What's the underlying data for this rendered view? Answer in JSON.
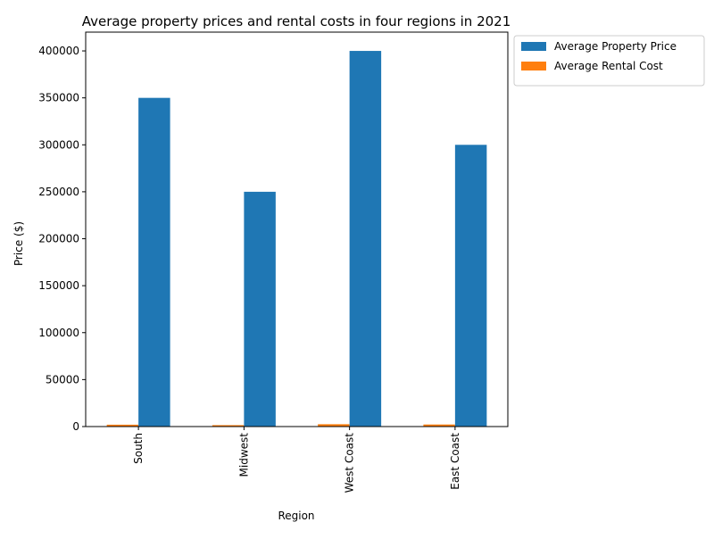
{
  "chart_data": {
    "type": "bar",
    "title": "Average property prices and rental costs in four regions in 2021",
    "xlabel": "Region",
    "ylabel": "Price ($)",
    "categories": [
      "South",
      "Midwest",
      "West Coast",
      "East Coast"
    ],
    "series": [
      {
        "name": "Average Rental Cost",
        "values": [
          2000,
          1500,
          2500,
          2200
        ],
        "color": "#ff7f0e"
      },
      {
        "name": "Average Property Price",
        "values": [
          350000,
          250000,
          400000,
          300000
        ],
        "color": "#1f77b4"
      }
    ],
    "ylim": [
      0,
      420000
    ],
    "yticks": [
      0,
      50000,
      100000,
      150000,
      200000,
      250000,
      300000,
      350000,
      400000
    ],
    "grid": false,
    "legend_position": "outside top-right",
    "legend_order": [
      "Average Property Price",
      "Average Rental Cost"
    ]
  }
}
